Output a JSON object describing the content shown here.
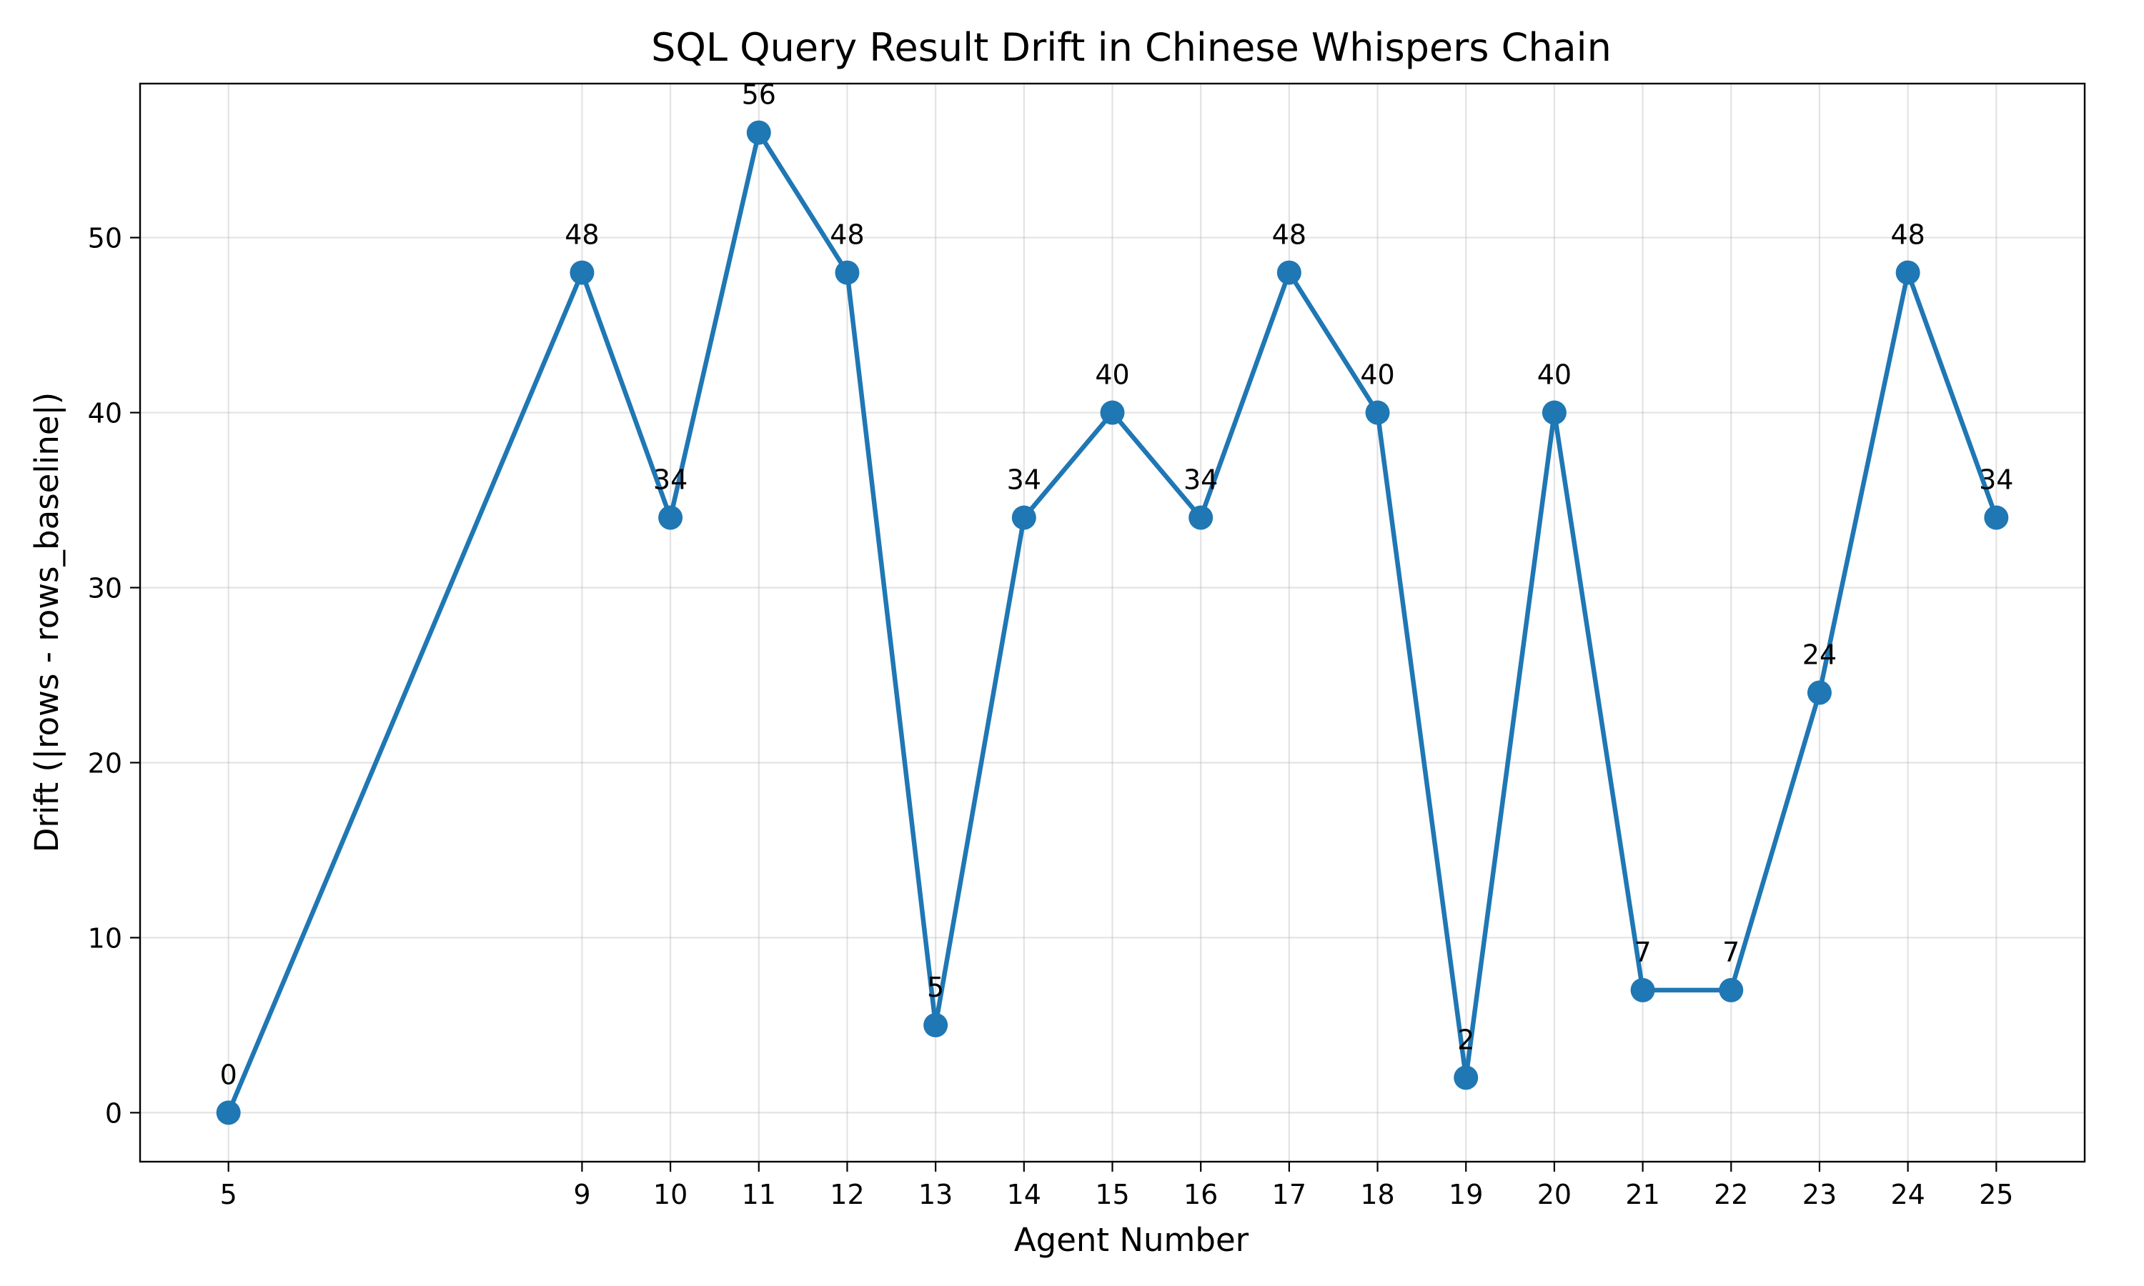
{
  "chart_data": {
    "type": "line",
    "title": "SQL Query Result Drift in Chinese Whispers Chain",
    "xlabel": "Agent Number",
    "ylabel": "Drift (|rows - rows_baseline|)",
    "x": [
      5,
      9,
      10,
      11,
      12,
      13,
      14,
      15,
      16,
      17,
      18,
      19,
      20,
      21,
      22,
      23,
      24,
      25
    ],
    "series": [
      {
        "values": [
          0,
          48,
          34,
          56,
          48,
          5,
          34,
          40,
          34,
          48,
          40,
          2,
          40,
          7,
          7,
          24,
          48,
          34
        ],
        "color": "#1f77b4",
        "marker": "circle"
      }
    ],
    "data_labels": [
      "0",
      "48",
      "34",
      "56",
      "48",
      "5",
      "34",
      "40",
      "34",
      "48",
      "40",
      "2",
      "40",
      "7",
      "7",
      "24",
      "48",
      "34"
    ],
    "x_ticks": [
      "5",
      "9",
      "10",
      "11",
      "12",
      "13",
      "14",
      "15",
      "16",
      "17",
      "18",
      "19",
      "20",
      "21",
      "22",
      "23",
      "24",
      "25"
    ],
    "y_ticks": [
      "0",
      "10",
      "20",
      "30",
      "40",
      "50"
    ],
    "y_tick_values": [
      0,
      10,
      20,
      30,
      40,
      50
    ],
    "xlim": [
      4,
      26
    ],
    "ylim": [
      -2.8,
      58.8
    ],
    "grid": true,
    "legend": "none"
  }
}
